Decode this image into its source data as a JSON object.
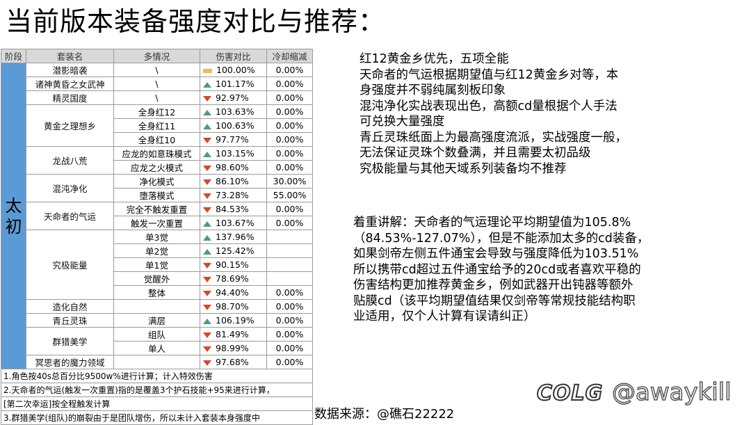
{
  "title": "当前版本装备强度对比与推荐：",
  "table": {
    "headers": [
      "阶段",
      "套装名",
      "多情况",
      "伤害对比",
      "冷却缩减"
    ],
    "group": "太初",
    "rows": [
      {
        "set": "潜影暗袭",
        "cond": "\\",
        "dmg": "100.00%",
        "trend": "flat",
        "cd": "0.00%"
      },
      {
        "set": "诸神黄昏之女武神",
        "cond": "\\",
        "dmg": "101.17%",
        "trend": "up",
        "cd": "0.00%"
      },
      {
        "set": "精灵国度",
        "cond": "\\",
        "dmg": "92.97%",
        "trend": "down",
        "cd": "0.00%"
      },
      {
        "set": "黄金之理想乡",
        "cond": "全身红12",
        "dmg": "103.63%",
        "trend": "up",
        "cd": "0.00%"
      },
      {
        "set": "",
        "cond": "全身红11",
        "dmg": "100.63%",
        "trend": "up",
        "cd": "0.00%"
      },
      {
        "set": "",
        "cond": "全身红10",
        "dmg": "97.77%",
        "trend": "down",
        "cd": "0.00%"
      },
      {
        "set": "龙战八荒",
        "cond": "应龙的如意珠模式",
        "dmg": "103.15%",
        "trend": "up",
        "cd": "0.00%"
      },
      {
        "set": "",
        "cond": "应龙之火模式",
        "dmg": "98.60%",
        "trend": "down",
        "cd": "0.00%"
      },
      {
        "set": "混沌净化",
        "cond": "净化模式",
        "dmg": "86.10%",
        "trend": "down",
        "cd": "30.00%"
      },
      {
        "set": "",
        "cond": "堕落模式",
        "dmg": "73.28%",
        "trend": "down",
        "cd": "55.00%"
      },
      {
        "set": "天命者的气运",
        "cond": "完全不触发重置",
        "dmg": "84.53%",
        "trend": "down",
        "cd": "0.00%"
      },
      {
        "set": "",
        "cond": "触发一次重置",
        "dmg": "103.67%",
        "trend": "up",
        "cd": "0.00%"
      },
      {
        "set": "究极能量",
        "cond": "单3觉",
        "dmg": "137.96%",
        "trend": "up",
        "cd": ""
      },
      {
        "set": "",
        "cond": "单2觉",
        "dmg": "125.42%",
        "trend": "up",
        "cd": ""
      },
      {
        "set": "",
        "cond": "单1觉",
        "dmg": "90.15%",
        "trend": "down",
        "cd": ""
      },
      {
        "set": "",
        "cond": "觉醒外",
        "dmg": "78.69%",
        "trend": "down",
        "cd": ""
      },
      {
        "set": "",
        "cond": "整体",
        "dmg": "94.40%",
        "trend": "down",
        "cd": "0.00%"
      },
      {
        "set": "造化自然",
        "cond": "",
        "dmg": "98.70%",
        "trend": "down",
        "cd": "0.00%"
      },
      {
        "set": "青丘灵珠",
        "cond": "满层",
        "dmg": "106.19%",
        "trend": "up",
        "cd": "0.00%"
      },
      {
        "set": "群猎美学",
        "cond": "组队",
        "dmg": "81.49%",
        "trend": "down",
        "cd": "0.00%"
      },
      {
        "set": "",
        "cond": "单人",
        "dmg": "98.99%",
        "trend": "down",
        "cd": "0.00%"
      },
      {
        "set": "冥思者的魔力领域",
        "cond": "",
        "dmg": "97.68%",
        "trend": "down",
        "cd": "0.00%"
      }
    ],
    "notes": [
      "1.角色按40s总百分比9500w%进行计算；计入特效伤害",
      "2.天命者的气运(触发一次重置)指的是覆盖3个护石技能+95来进行计算，",
      "[第二次幸运]按全程触发计算",
      "3.群猎美学(组队)的崩裂由于是团队增伤，所以未计入套装本身强度中"
    ]
  },
  "recommend_lines": [
    "红12黄金乡优先，五项全能",
    "天命者的气运根据期望值与红12黄金乡对等，本",
    "身强度并不弱纯属刻板印象",
    "混沌净化实战表现出色，高额cd量根据个人手法",
    "可兑换大量强度",
    "青丘灵珠纸面上为最高强度流派，实战强度一般，",
    "无法保证灵珠个数叠满，并且需要太初品级",
    "究极能量与其他天域系列装备均不推荐"
  ],
  "explain_lines": [
    "着重讲解：天命者的气运理论平均期望值为105.8%",
    "（84.53%-127.07%），但是不能添加太多的cd装备，",
    "如果剑帝左侧五件通宝会导致与强度降低为103.51%",
    "所以携带cd超过五件通宝给予的20cd或者喜欢平稳的",
    "伤害结构更加推荐黄金乡，例如武器开出钝器等额外",
    "贴膜cd（该平均期望值结果仅剑帝等常规技能结构职",
    "业适用，仅个人计算有误请纠正）"
  ],
  "source": "数据来源：@礁石22222",
  "watermark": {
    "logo": "COLG",
    "handle": "@awaykill"
  },
  "colors": {
    "group_bg": "#5b9bd5",
    "up": "#4e9a7c",
    "down": "#d9452b",
    "flat": "#f2b75b",
    "header_bg": "#d9d9d9"
  }
}
